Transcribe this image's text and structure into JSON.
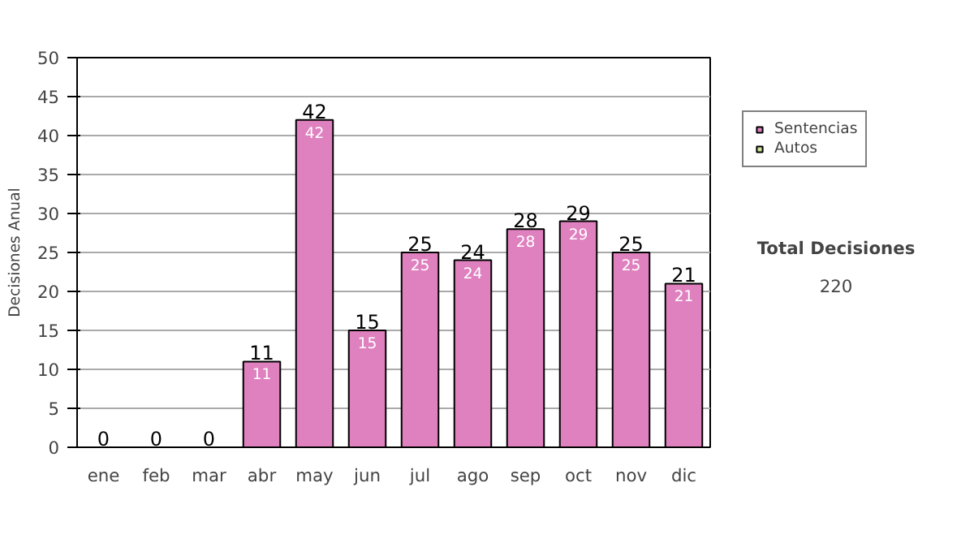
{
  "chart_data": {
    "type": "bar",
    "stacked": true,
    "ylabel": "Decisiones Anual",
    "categories": [
      "ene",
      "feb",
      "mar",
      "abr",
      "may",
      "jun",
      "jul",
      "ago",
      "sep",
      "oct",
      "nov",
      "dic"
    ],
    "series": [
      {
        "name": "Sentencias",
        "color": "#df80bf",
        "values": [
          0,
          0,
          0,
          11,
          42,
          15,
          25,
          24,
          28,
          29,
          25,
          21
        ],
        "value_labels": [
          null,
          null,
          null,
          "11",
          "42",
          "15",
          "25",
          "24",
          "28",
          "29",
          "25",
          "21"
        ]
      },
      {
        "name": "Autos",
        "color": "#cce699",
        "values": [
          0,
          0,
          0,
          0,
          0,
          0,
          0,
          0,
          0,
          0,
          0,
          0
        ]
      }
    ],
    "totals": [
      "0",
      "0",
      "0",
      "11",
      "42",
      "15",
      "25",
      "24",
      "28",
      "29",
      "25",
      "21"
    ],
    "ylim": [
      0,
      50
    ],
    "yticks": [
      0,
      5,
      10,
      15,
      20,
      25,
      30,
      35,
      40,
      45,
      50
    ],
    "grid": "y",
    "legend": "right",
    "annotations": [
      "Total Decisiones",
      "220"
    ]
  }
}
